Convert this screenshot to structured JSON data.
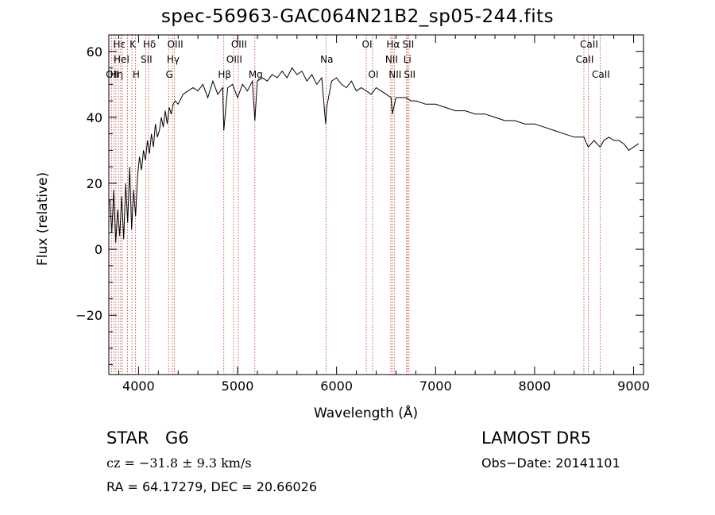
{
  "chart_data": {
    "type": "line",
    "title": "spec-56963-GAC064N21B2_sp05-244.fits",
    "xlabel": "Wavelength (Å)",
    "ylabel": "Flux (relative)",
    "xlim": [
      3700,
      9100
    ],
    "ylim": [
      -38,
      65
    ],
    "xticks": [
      4000,
      5000,
      6000,
      7000,
      8000,
      9000
    ],
    "yticks": [
      -20,
      0,
      20,
      40,
      60
    ],
    "grid": false,
    "line_color": "#000000",
    "marker_color": "#c0392b",
    "series": [
      {
        "x": [
          3710,
          3730,
          3750,
          3770,
          3790,
          3810,
          3830,
          3850,
          3870,
          3890,
          3910,
          3930,
          3950,
          3970,
          3990,
          4010,
          4030,
          4050,
          4070,
          4090,
          4110,
          4130,
          4150,
          4170,
          4190,
          4210,
          4230,
          4250,
          4270,
          4290,
          4310,
          4330,
          4350,
          4370,
          4400,
          4450,
          4500,
          4550,
          4600,
          4650,
          4700,
          4750,
          4800,
          4850,
          4861,
          4900,
          4950,
          5000,
          5050,
          5100,
          5150,
          5175,
          5200,
          5250,
          5300,
          5350,
          5400,
          5450,
          5500,
          5550,
          5600,
          5650,
          5700,
          5750,
          5800,
          5850,
          5890,
          5900,
          5950,
          6000,
          6050,
          6100,
          6150,
          6200,
          6250,
          6300,
          6350,
          6400,
          6450,
          6500,
          6550,
          6563,
          6600,
          6650,
          6700,
          6750,
          6800,
          6900,
          7000,
          7100,
          7200,
          7300,
          7400,
          7500,
          7600,
          7700,
          7800,
          7900,
          8000,
          8100,
          8200,
          8300,
          8400,
          8498,
          8542,
          8600,
          8662,
          8700,
          8750,
          8800,
          8850,
          8900,
          8950,
          9000,
          9050
        ],
        "y": [
          15,
          5,
          18,
          2,
          12,
          4,
          16,
          3,
          20,
          8,
          25,
          6,
          18,
          10,
          22,
          28,
          24,
          30,
          27,
          33,
          29,
          35,
          31,
          38,
          34,
          36,
          40,
          37,
          42,
          38,
          43,
          41,
          44,
          45,
          44,
          47,
          48,
          49,
          48,
          50,
          46,
          51,
          47,
          49,
          36,
          49,
          50,
          46,
          50,
          48,
          51,
          39,
          51,
          52,
          51,
          53,
          52,
          54,
          52,
          55,
          53,
          54,
          51,
          53,
          50,
          52,
          38,
          43,
          51,
          52,
          50,
          49,
          51,
          48,
          49,
          48,
          47,
          49,
          48,
          47,
          46,
          41,
          46,
          46,
          46,
          45,
          45,
          44,
          44,
          43,
          42,
          42,
          41,
          41,
          40,
          39,
          39,
          38,
          38,
          37,
          36,
          35,
          34,
          34,
          31,
          33,
          31,
          33,
          34,
          33,
          33,
          32,
          30,
          31,
          32
        ]
      }
    ],
    "lines": [
      {
        "x": 3727,
        "labels": [
          "OII"
        ],
        "row": 2
      },
      {
        "x": 3750,
        "labels": [],
        "row": 0
      },
      {
        "x": 3771,
        "labels": [
          "Hη"
        ],
        "row": 2
      },
      {
        "x": 3798,
        "labels": [
          "Hε"
        ],
        "row": 0
      },
      {
        "x": 3820,
        "labels": [
          "HeI"
        ],
        "row": 1
      },
      {
        "x": 3835,
        "labels": [],
        "row": 0
      },
      {
        "x": 3889,
        "labels": [],
        "row": 0
      },
      {
        "x": 3933,
        "labels": [
          "K"
        ],
        "row": 0
      },
      {
        "x": 3968,
        "labels": [
          "H"
        ],
        "row": 2
      },
      {
        "x": 4072,
        "labels": [
          "SII"
        ],
        "row": 1
      },
      {
        "x": 4102,
        "labels": [
          "Hδ"
        ],
        "row": 0
      },
      {
        "x": 4304,
        "labels": [
          "G"
        ],
        "row": 2
      },
      {
        "x": 4341,
        "labels": [
          "Hγ"
        ],
        "row": 1
      },
      {
        "x": 4363,
        "labels": [
          "OIII"
        ],
        "row": 0
      },
      {
        "x": 4861,
        "labels": [
          "Hβ"
        ],
        "row": 2
      },
      {
        "x": 4959,
        "labels": [
          "OIII"
        ],
        "row": 1
      },
      {
        "x": 5007,
        "labels": [
          "OIII"
        ],
        "row": 0
      },
      {
        "x": 5175,
        "labels": [
          "Mg"
        ],
        "row": 2
      },
      {
        "x": 5893,
        "labels": [
          "Na"
        ],
        "row": 1
      },
      {
        "x": 6300,
        "labels": [
          "OI"
        ],
        "row": 0
      },
      {
        "x": 6364,
        "labels": [
          "OI"
        ],
        "row": 2
      },
      {
        "x": 6548,
        "labels": [
          "NII"
        ],
        "row": 1
      },
      {
        "x": 6563,
        "labels": [
          "Hα"
        ],
        "row": 0
      },
      {
        "x": 6583,
        "labels": [
          "NII"
        ],
        "row": 2
      },
      {
        "x": 6707,
        "labels": [
          "Li"
        ],
        "row": 1
      },
      {
        "x": 6716,
        "labels": [
          "SII"
        ],
        "row": 0
      },
      {
        "x": 6731,
        "labels": [
          "SII"
        ],
        "row": 2
      },
      {
        "x": 8498,
        "labels": [
          "CaII"
        ],
        "row": 1
      },
      {
        "x": 8542,
        "labels": [
          "CaII"
        ],
        "row": 0
      },
      {
        "x": 8662,
        "labels": [
          "CaII"
        ],
        "row": 2
      }
    ],
    "header_labels": [
      "OIIHe",
      "OIIHη"
    ]
  },
  "info": {
    "class": "STAR",
    "subclass": "G6",
    "survey": "LAMOST DR5",
    "cz": "cz = −31.8 ± 9.3 km/s",
    "obs_date": "Obs−Date: 20141101",
    "coords": "RA =  64.17279, DEC =  20.66026"
  }
}
